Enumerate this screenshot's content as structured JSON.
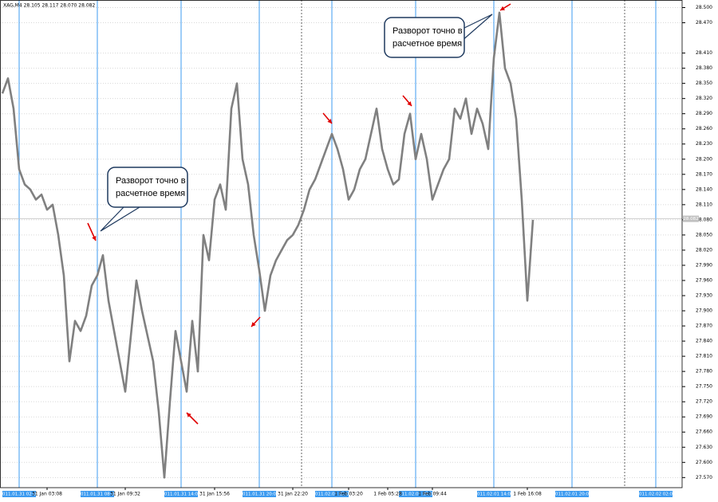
{
  "chart_data": {
    "type": "line",
    "title": "XAG,M4 28.105 28.117 28.070 28.082",
    "categories": [
      null,
      null,
      null,
      null,
      null,
      null,
      null,
      null,
      "31 Jan 03:08",
      null,
      null,
      null,
      null,
      null,
      null,
      null,
      null,
      null,
      null,
      null,
      null,
      null,
      "31 Jan 09:32",
      null,
      null,
      null,
      null,
      null,
      null,
      null,
      null,
      null,
      null,
      null,
      null,
      null,
      null,
      null,
      "31 Jan 15:56",
      null,
      null,
      null,
      null,
      null,
      null,
      null,
      null,
      null,
      null,
      null,
      null,
      null,
      "31 Jan 22:20",
      null,
      null,
      null,
      null,
      null,
      null,
      null,
      null,
      null,
      "1 Feb 03:20",
      null,
      null,
      null,
      null,
      null,
      null,
      "1 Feb 05:28",
      null,
      null,
      null,
      null,
      null,
      null,
      null,
      "1 Feb 09:44",
      null,
      null,
      null,
      null,
      null,
      null,
      null,
      null,
      null,
      null,
      null,
      null,
      null,
      null,
      null,
      null,
      "1 Feb 16:08",
      null,
      null,
      null,
      null,
      null,
      null,
      null,
      null,
      null,
      null,
      null,
      null,
      null,
      null,
      null,
      null,
      null,
      null,
      null,
      null,
      null,
      null,
      null,
      null,
      null,
      null,
      null
    ],
    "series": [
      {
        "name": "XAG,M4",
        "color": "#808080",
        "values": [
          28.33,
          28.36,
          28.3,
          28.18,
          28.15,
          28.14,
          28.12,
          28.13,
          28.1,
          28.11,
          28.05,
          27.97,
          27.8,
          27.88,
          27.86,
          27.89,
          27.95,
          27.97,
          28.01,
          27.92,
          27.86,
          27.8,
          27.74,
          27.85,
          27.96,
          27.9,
          27.85,
          27.8,
          27.7,
          27.57,
          27.72,
          27.86,
          27.8,
          27.74,
          27.88,
          27.78,
          28.05,
          28.0,
          28.12,
          28.15,
          28.1,
          28.3,
          28.35,
          28.2,
          28.15,
          28.05,
          27.98,
          27.9,
          27.97,
          28.0,
          28.02,
          28.04,
          28.05,
          28.07,
          28.1,
          28.14,
          28.16,
          28.19,
          28.22,
          28.25,
          28.22,
          28.18,
          28.12,
          28.14,
          28.18,
          28.2,
          28.25,
          28.3,
          28.22,
          28.18,
          28.15,
          28.16,
          28.25,
          28.29,
          28.2,
          28.25,
          28.2,
          28.12,
          28.15,
          28.18,
          28.2,
          28.3,
          28.28,
          28.32,
          28.25,
          28.3,
          28.27,
          28.22,
          28.4,
          28.49,
          28.38,
          28.35,
          28.28,
          28.12,
          27.92,
          28.08,
          null,
          null,
          null,
          null,
          null,
          null,
          null,
          null,
          null,
          null,
          null,
          null,
          null,
          null,
          null,
          null,
          null,
          null,
          null,
          null,
          null,
          null,
          null,
          null,
          null,
          null
        ]
      }
    ],
    "ylim": [
      27.55,
      28.515
    ],
    "yticks": [
      {
        "value": 28.5,
        "label": "28.500"
      },
      {
        "value": 28.47,
        "label": "28.470"
      },
      {
        "value": 28.41,
        "label": "28.410"
      },
      {
        "value": 28.38,
        "label": "28.380"
      },
      {
        "value": 28.35,
        "label": "28.350"
      },
      {
        "value": 28.32,
        "label": "28.320"
      },
      {
        "value": 28.29,
        "label": "28.290"
      },
      {
        "value": 28.26,
        "label": "28.260"
      },
      {
        "value": 28.23,
        "label": "28.230"
      },
      {
        "value": 28.2,
        "label": "28.200"
      },
      {
        "value": 28.17,
        "label": "28.170"
      },
      {
        "value": 28.14,
        "label": "28.140"
      },
      {
        "value": 28.11,
        "label": "28.110"
      },
      {
        "value": 28.08,
        "label": "28.080"
      },
      {
        "value": 28.05,
        "label": "28.050"
      },
      {
        "value": 28.02,
        "label": "28.020"
      },
      {
        "value": 27.99,
        "label": "27.990"
      },
      {
        "value": 27.96,
        "label": "27.960"
      },
      {
        "value": 27.93,
        "label": "27.930"
      },
      {
        "value": 27.9,
        "label": "27.900"
      },
      {
        "value": 27.87,
        "label": "27.870"
      },
      {
        "value": 27.84,
        "label": "27.840"
      },
      {
        "value": 27.81,
        "label": "27.810"
      },
      {
        "value": 27.78,
        "label": "27.780"
      },
      {
        "value": 27.75,
        "label": "27.750"
      },
      {
        "value": 27.72,
        "label": "27.720"
      },
      {
        "value": 27.69,
        "label": "27.690"
      },
      {
        "value": 27.66,
        "label": "27.660"
      },
      {
        "value": 27.63,
        "label": "27.630"
      },
      {
        "value": 27.6,
        "label": "27.600"
      },
      {
        "value": 27.57,
        "label": "27.570"
      }
    ],
    "grid": true,
    "current_price": {
      "value": 28.082,
      "label": "28.082"
    },
    "time_markers": [
      "2011.01.31 02:08",
      "2011.01.31 08:08",
      "2011.01.31 14:08",
      "2011.01.31 20:08",
      "2011.02.01 02:08",
      "2011.02.01 08:08",
      "2011.02.01 14:08",
      "2011.02.01 20:08",
      "2011.02.02 02:08"
    ],
    "annotations": [
      [
        "Разворот точно в",
        "расчетное время"
      ],
      [
        "Разворот точно в",
        "расчетное время"
      ]
    ]
  }
}
